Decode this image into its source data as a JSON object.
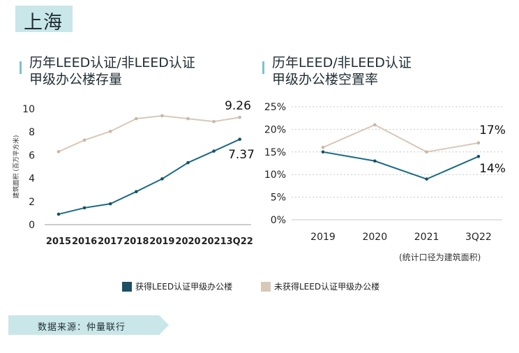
{
  "city": "上海",
  "source": "数据来源：仲量联行",
  "footnote": "(统计口径为建筑面积)",
  "legend": {
    "certified": "获得LEED认证甲级办公楼",
    "uncertified": "未获得LEED认证甲级办公楼"
  },
  "colors": {
    "certified": "#1a6b82",
    "uncertified": "#d8c8b8",
    "accent": "#c9e6e8",
    "bar": "#7cc3cd"
  },
  "chart_data": [
    {
      "type": "line",
      "title_lines": [
        "历年LEED认证/非LEED认证",
        "甲级办公楼存量"
      ],
      "ylabel": "建筑面积 (百万平方米)",
      "xlabel": "",
      "categories": [
        "2015",
        "2016",
        "2017",
        "2018",
        "2019",
        "2020",
        "2021",
        "3Q22"
      ],
      "ylim": [
        0,
        10
      ],
      "yticks": [
        "0",
        "2",
        "4",
        "6",
        "8",
        "10"
      ],
      "series": [
        {
          "name": "获得LEED认证甲级办公楼",
          "values": [
            0.9,
            1.45,
            1.8,
            2.85,
            3.95,
            5.35,
            6.35,
            7.37
          ]
        },
        {
          "name": "未获得LEED认证甲级办公楼",
          "values": [
            6.3,
            7.3,
            8.05,
            9.15,
            9.4,
            9.15,
            8.9,
            9.26
          ]
        }
      ],
      "annotations": [
        "9.26",
        "7.37"
      ]
    },
    {
      "type": "line",
      "title_lines": [
        "历年LEED/非LEED认证",
        "甲级办公楼空置率"
      ],
      "xlabel": "",
      "ylabel": "",
      "categories": [
        "2019",
        "2020",
        "2021",
        "3Q22"
      ],
      "ylim": [
        0,
        25
      ],
      "yticks": [
        "0%",
        "5%",
        "10%",
        "15%",
        "20%",
        "25%"
      ],
      "series": [
        {
          "name": "获得LEED认证甲级办公楼",
          "values": [
            15,
            13,
            9,
            14
          ]
        },
        {
          "name": "未获得LEED认证甲级办公楼",
          "values": [
            16,
            21,
            15,
            17
          ]
        }
      ],
      "annotations": [
        "17%",
        "14%"
      ]
    }
  ]
}
